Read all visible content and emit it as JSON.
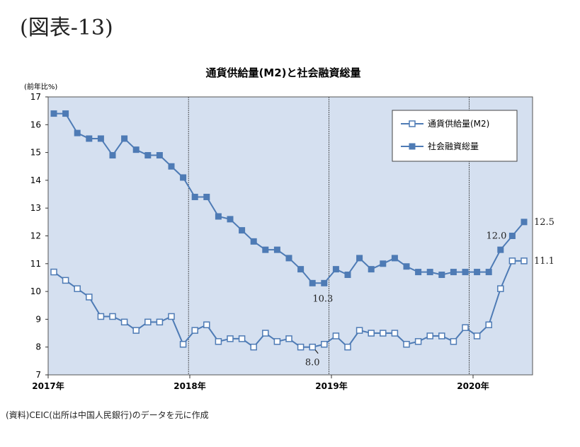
{
  "figure_label": "(図表-13)",
  "source_note": "(資料)CEIC(出所は中国人民銀行)のデータを元に作成",
  "chart_data": {
    "type": "line",
    "title": "通貨供給量(M2)と社会融資総量",
    "ylabel": "(前年比%)",
    "xlabel": "",
    "ylim": [
      7,
      17
    ],
    "yticks": [
      7,
      8,
      9,
      10,
      11,
      12,
      13,
      14,
      15,
      16,
      17
    ],
    "x_start": "2017-01",
    "x_ticks": [
      {
        "label": "2017年",
        "month_index": 0
      },
      {
        "label": "2018年",
        "month_index": 12
      },
      {
        "label": "2019年",
        "month_index": 24
      },
      {
        "label": "2020年",
        "month_index": 36
      }
    ],
    "year_dividers": [
      12,
      24,
      36
    ],
    "grid": false,
    "legend_position": "top-right",
    "plot_background": "#d5e0f0",
    "line_color": "#4e7bb5",
    "series": [
      {
        "name": "通貨供給量(M2)",
        "marker": "hollow-square",
        "values": [
          10.7,
          10.4,
          10.1,
          9.8,
          9.1,
          9.1,
          8.9,
          8.6,
          8.9,
          8.9,
          9.1,
          8.1,
          8.6,
          8.8,
          8.2,
          8.3,
          8.3,
          8.0,
          8.5,
          8.2,
          8.3,
          8.0,
          8.0,
          8.1,
          8.4,
          8.0,
          8.6,
          8.5,
          8.5,
          8.5,
          8.1,
          8.2,
          8.4,
          8.4,
          8.2,
          8.7,
          8.4,
          8.8,
          10.1,
          11.1,
          11.1
        ]
      },
      {
        "name": "社会融資総量",
        "marker": "filled-square",
        "values": [
          16.4,
          16.4,
          15.7,
          15.5,
          15.5,
          14.9,
          15.5,
          15.1,
          14.9,
          14.9,
          14.5,
          14.1,
          13.4,
          13.4,
          12.7,
          12.6,
          12.2,
          11.8,
          11.5,
          11.5,
          11.2,
          10.8,
          10.3,
          10.3,
          10.8,
          10.6,
          11.2,
          10.8,
          11.0,
          11.2,
          10.9,
          10.7,
          10.7,
          10.6,
          10.7,
          10.7,
          10.7,
          10.7,
          11.5,
          12.0,
          12.5
        ]
      }
    ],
    "annotations": [
      {
        "text": "12.5",
        "series": 1,
        "index": 40
      },
      {
        "text": "12.0",
        "series": 1,
        "index": 39
      },
      {
        "text": "11.1",
        "series": 0,
        "index": 40
      },
      {
        "text": "10.3",
        "series": 1,
        "index": 23
      },
      {
        "text": "8.0",
        "series": 0,
        "index": 22
      }
    ]
  }
}
